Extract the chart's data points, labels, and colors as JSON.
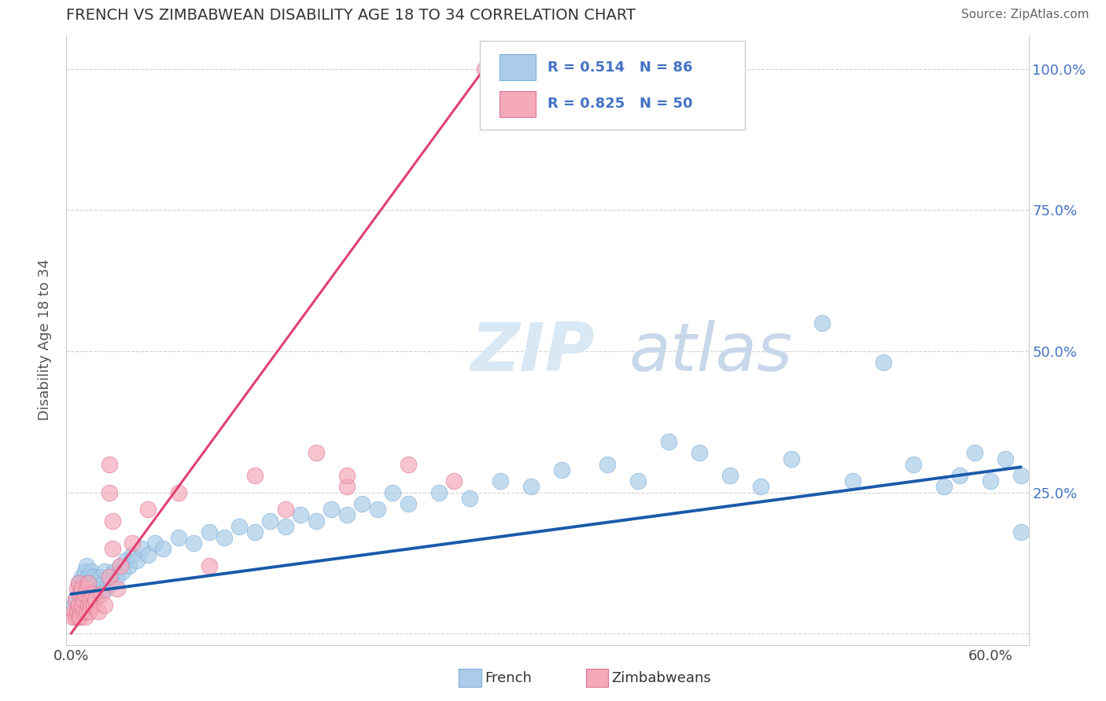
{
  "title": "FRENCH VS ZIMBABWEAN DISABILITY AGE 18 TO 34 CORRELATION CHART",
  "source": "Source: ZipAtlas.com",
  "ylabel": "Disability Age 18 to 34",
  "xlim": [
    -0.003,
    0.625
  ],
  "ylim": [
    -0.02,
    1.06
  ],
  "french_R": 0.514,
  "french_N": 86,
  "zimbabwean_R": 0.825,
  "zimbabwean_N": 50,
  "french_color": "#aacce8",
  "french_edge_color": "#7aacda",
  "zimbabwean_color": "#f4aabb",
  "zimbabwean_edge_color": "#e07090",
  "french_line_color": "#1a5aaa",
  "zimbabwean_line_color": "#e04070",
  "watermark_color": "#d5e5f5",
  "background_color": "#ffffff",
  "title_color": "#333333",
  "source_color": "#666666",
  "axis_label_color": "#555555",
  "right_tick_color": "#4472c4",
  "legend_label_french": "French",
  "legend_label_zimbabweans": "Zimbabweans",
  "x_tick_pos": [
    0.0,
    0.1,
    0.2,
    0.3,
    0.4,
    0.5,
    0.6
  ],
  "x_tick_labels": [
    "0.0%",
    "",
    "",
    "",
    "",
    "",
    "60.0%"
  ],
  "y_tick_pos": [
    0.0,
    0.25,
    0.5,
    0.75,
    1.0
  ],
  "y_tick_labels_right": [
    "",
    "25.0%",
    "50.0%",
    "75.0%",
    "100.0%"
  ],
  "french_scatter_x": [
    0.002,
    0.003,
    0.004,
    0.005,
    0.005,
    0.006,
    0.006,
    0.007,
    0.007,
    0.008,
    0.008,
    0.009,
    0.009,
    0.01,
    0.01,
    0.01,
    0.011,
    0.011,
    0.012,
    0.012,
    0.013,
    0.013,
    0.014,
    0.015,
    0.015,
    0.016,
    0.017,
    0.018,
    0.019,
    0.02,
    0.021,
    0.022,
    0.023,
    0.025,
    0.026,
    0.028,
    0.03,
    0.032,
    0.034,
    0.036,
    0.038,
    0.04,
    0.043,
    0.046,
    0.05,
    0.055,
    0.06,
    0.07,
    0.08,
    0.09,
    0.1,
    0.11,
    0.12,
    0.13,
    0.14,
    0.15,
    0.16,
    0.17,
    0.18,
    0.19,
    0.2,
    0.21,
    0.22,
    0.24,
    0.26,
    0.28,
    0.3,
    0.32,
    0.35,
    0.37,
    0.39,
    0.41,
    0.43,
    0.45,
    0.47,
    0.49,
    0.51,
    0.53,
    0.55,
    0.57,
    0.58,
    0.59,
    0.6,
    0.61,
    0.62,
    0.62
  ],
  "french_scatter_y": [
    0.05,
    0.06,
    0.04,
    0.07,
    0.09,
    0.05,
    0.08,
    0.06,
    0.1,
    0.07,
    0.09,
    0.05,
    0.11,
    0.06,
    0.08,
    0.12,
    0.07,
    0.1,
    0.06,
    0.09,
    0.07,
    0.11,
    0.08,
    0.06,
    0.1,
    0.08,
    0.09,
    0.07,
    0.1,
    0.08,
    0.09,
    0.11,
    0.08,
    0.1,
    0.09,
    0.11,
    0.1,
    0.12,
    0.11,
    0.13,
    0.12,
    0.14,
    0.13,
    0.15,
    0.14,
    0.16,
    0.15,
    0.17,
    0.16,
    0.18,
    0.17,
    0.19,
    0.18,
    0.2,
    0.19,
    0.21,
    0.2,
    0.22,
    0.21,
    0.23,
    0.22,
    0.25,
    0.23,
    0.25,
    0.24,
    0.27,
    0.26,
    0.29,
    0.3,
    0.27,
    0.34,
    0.32,
    0.28,
    0.26,
    0.31,
    0.55,
    0.27,
    0.48,
    0.3,
    0.26,
    0.28,
    0.32,
    0.27,
    0.31,
    0.28,
    0.18
  ],
  "zimbabwean_scatter_x": [
    0.001,
    0.002,
    0.003,
    0.003,
    0.004,
    0.004,
    0.005,
    0.005,
    0.005,
    0.006,
    0.006,
    0.006,
    0.007,
    0.007,
    0.008,
    0.008,
    0.009,
    0.009,
    0.01,
    0.01,
    0.011,
    0.011,
    0.012,
    0.012,
    0.013,
    0.014,
    0.015,
    0.016,
    0.018,
    0.02,
    0.022,
    0.025,
    0.025,
    0.027,
    0.03,
    0.027,
    0.032,
    0.025,
    0.04,
    0.05,
    0.07,
    0.09,
    0.12,
    0.14,
    0.16,
    0.18,
    0.18,
    0.22,
    0.25,
    0.27
  ],
  "zimbabwean_scatter_y": [
    0.03,
    0.04,
    0.03,
    0.06,
    0.04,
    0.08,
    0.03,
    0.05,
    0.09,
    0.04,
    0.07,
    0.03,
    0.05,
    0.08,
    0.04,
    0.06,
    0.03,
    0.07,
    0.04,
    0.08,
    0.05,
    0.09,
    0.04,
    0.06,
    0.05,
    0.07,
    0.05,
    0.06,
    0.04,
    0.07,
    0.05,
    0.25,
    0.1,
    0.15,
    0.08,
    0.2,
    0.12,
    0.3,
    0.16,
    0.22,
    0.25,
    0.12,
    0.28,
    0.22,
    0.32,
    0.26,
    0.28,
    0.3,
    0.27,
    1.0
  ],
  "zim_line_x0": 0.0,
  "zim_line_x1": 0.275,
  "french_line_x0": 0.0,
  "french_line_x1": 0.62,
  "french_line_y0": 0.07,
  "french_line_y1": 0.295,
  "zim_line_y0": 0.0,
  "zim_line_y1": 1.02
}
